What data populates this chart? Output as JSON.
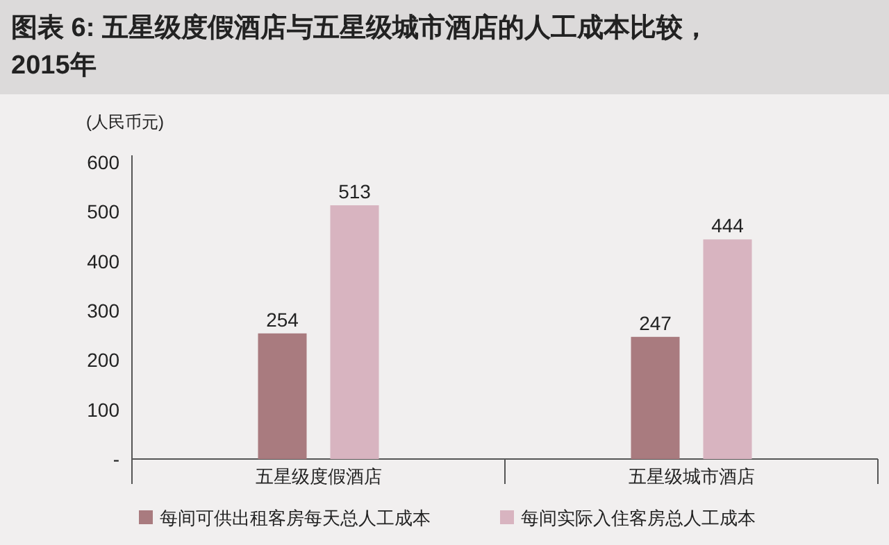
{
  "chart_data": {
    "type": "bar",
    "title": "图表 6: 五星级度假酒店与五星级城市酒店的人工成本比较，2015年",
    "ylabel": "(人民币元)",
    "categories": [
      "五星级度假酒店",
      "五星级城市酒店"
    ],
    "series": [
      {
        "name": "每间可供出租客房每天总人工成本",
        "color": "#a97b7f",
        "values": [
          254,
          247
        ]
      },
      {
        "name": "每间实际入住客房总人工成本",
        "color": "#d8b4c0",
        "values": [
          513,
          444
        ]
      }
    ],
    "ylim": [
      0,
      600
    ],
    "yticks": [
      {
        "value": 0,
        "label": "-"
      },
      100,
      200,
      300,
      400,
      500,
      600
    ],
    "data_labels": true,
    "legend": "bottom",
    "grid": false
  }
}
